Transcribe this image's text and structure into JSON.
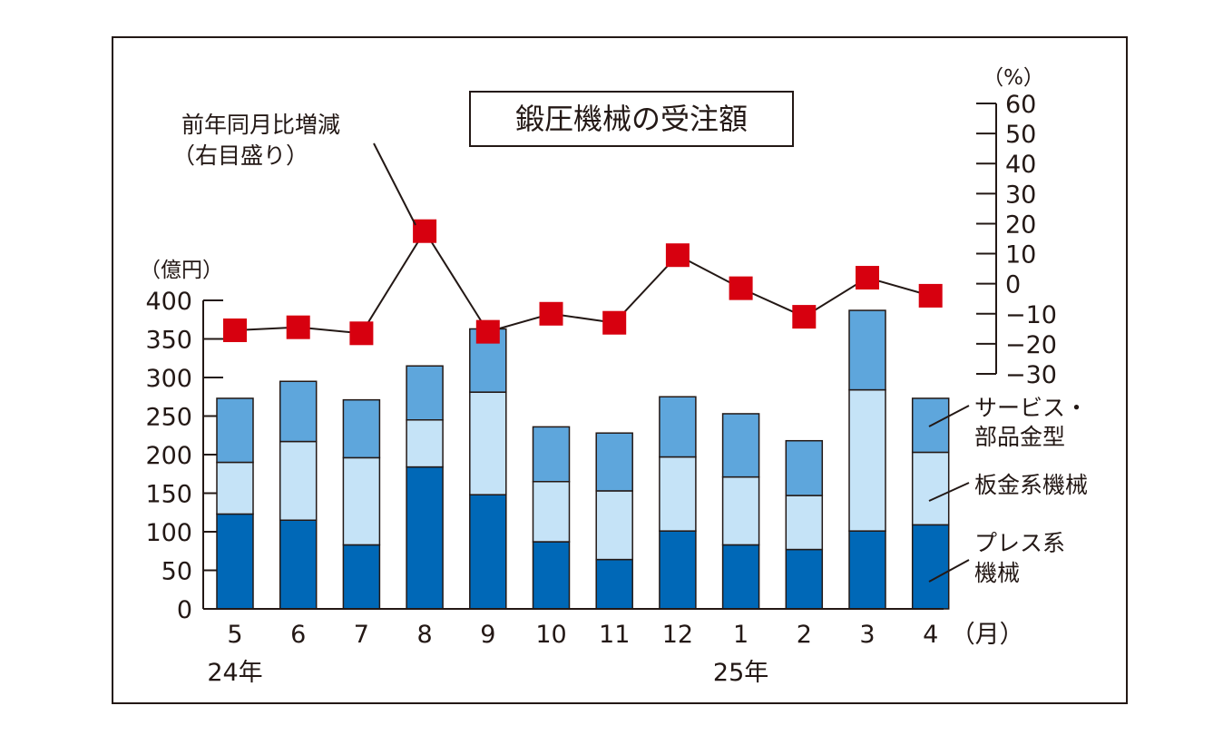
{
  "chart_data": {
    "type": "bar",
    "title": "鍛圧機械の受注額",
    "categories": [
      "5",
      "6",
      "7",
      "8",
      "9",
      "10",
      "11",
      "12",
      "1",
      "2",
      "3",
      "4"
    ],
    "year_labels": [
      {
        "label": "24年",
        "at_category": 0
      },
      {
        "label": "25年",
        "at_category": 8
      }
    ],
    "x_unit": "（月）",
    "left_axis": {
      "unit": "（億円）",
      "ylim": [
        0,
        400
      ],
      "ticks": [
        0,
        50,
        100,
        150,
        200,
        250,
        300,
        350,
        400
      ],
      "tick_labels": [
        "0",
        "50",
        "100",
        "150",
        "200",
        "250",
        "300",
        "350",
        "400"
      ]
    },
    "right_axis": {
      "unit": "（%）",
      "ylim": [
        -30,
        60
      ],
      "ticks": [
        -30,
        -20,
        -10,
        0,
        10,
        20,
        30,
        40,
        50,
        60
      ],
      "tick_labels": [
        "−30",
        "−20",
        "−10",
        "0",
        "10",
        "20",
        "30",
        "40",
        "50",
        "60"
      ]
    },
    "series": [
      {
        "name": "プレス系機械",
        "kind": "bar",
        "color": "#0068b7",
        "values": [
          123,
          115,
          83,
          184,
          148,
          87,
          64,
          101,
          83,
          77,
          101,
          109
        ]
      },
      {
        "name": "板金系機械",
        "kind": "bar",
        "color": "#c5e3f7",
        "values": [
          67,
          102,
          113,
          61,
          133,
          78,
          89,
          96,
          88,
          70,
          183,
          94
        ]
      },
      {
        "name": "サービス・部品金型",
        "kind": "bar",
        "color": "#5ea6dc",
        "values": [
          83,
          78,
          75,
          70,
          82,
          71,
          75,
          78,
          82,
          71,
          103,
          70
        ]
      },
      {
        "name": "前年同月比増減",
        "kind": "line",
        "axis": "right",
        "color": "#d7000f",
        "line_color": "#231815",
        "values": [
          -15.5,
          -14.5,
          -16.5,
          17.5,
          -16,
          -10,
          -13,
          9.5,
          -1.5,
          -11,
          2,
          -4
        ]
      }
    ],
    "annotations": {
      "line_label_1": "前年同月比増減",
      "line_label_2": "（右目盛り）",
      "legend_service_1": "サービス・",
      "legend_service_2": "部品金型",
      "legend_sheet": "板金系機械",
      "legend_press_1": "プレス系",
      "legend_press_2": "機械"
    }
  }
}
